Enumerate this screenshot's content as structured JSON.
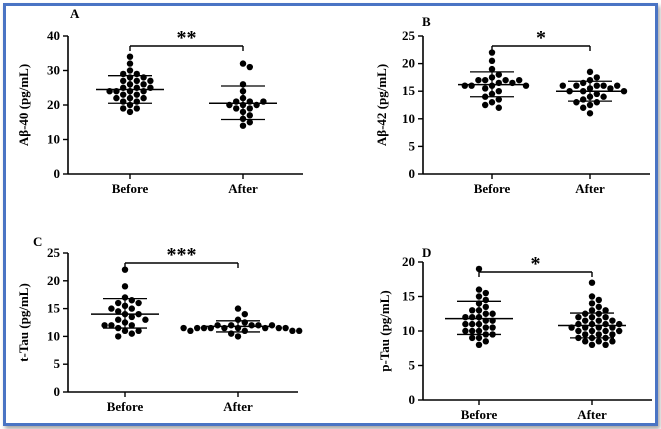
{
  "border_color": "#4a74c4",
  "chart_data": [
    {
      "type": "scatter",
      "panel": "A",
      "categories": [
        "Before",
        "After"
      ],
      "ylabel": "Aβ-40 (pg/mL)",
      "ylim": [
        0,
        40
      ],
      "yticks": [
        0,
        10,
        20,
        30,
        40
      ],
      "significance": "**",
      "summary": [
        {
          "mean": 24.5,
          "sd_low": 20.5,
          "sd_high": 28.5
        },
        {
          "mean": 20.5,
          "sd_low": 15.8,
          "sd_high": 25.5
        }
      ],
      "series": [
        {
          "values": [
            34,
            32,
            30,
            29,
            29,
            28,
            28,
            27,
            27,
            27,
            26,
            26,
            25,
            25,
            25,
            24,
            24,
            24,
            24,
            23,
            23,
            22,
            22,
            22,
            21,
            21,
            20,
            19,
            19,
            18
          ]
        },
        {
          "values": [
            32,
            31,
            26,
            24,
            22,
            21,
            21,
            21,
            20,
            20,
            20,
            19,
            19,
            18,
            17,
            16,
            15,
            14
          ]
        }
      ]
    },
    {
      "type": "scatter",
      "panel": "B",
      "categories": [
        "Before",
        "After"
      ],
      "ylabel": "Aβ-42 (pg/mL)",
      "ylim": [
        0,
        25
      ],
      "yticks": [
        0,
        5,
        10,
        15,
        20,
        25
      ],
      "significance": "*",
      "summary": [
        {
          "mean": 16.2,
          "sd_low": 14.0,
          "sd_high": 18.5
        },
        {
          "mean": 15.0,
          "sd_low": 13.2,
          "sd_high": 16.8
        }
      ],
      "series": [
        {
          "values": [
            22,
            20.5,
            19,
            18,
            17.5,
            17,
            17,
            17,
            17,
            16.5,
            16.5,
            16,
            16,
            16,
            16,
            15.5,
            15,
            14.5,
            14,
            13.5,
            13,
            12.5,
            12
          ]
        },
        {
          "values": [
            18.5,
            17.5,
            17,
            16.5,
            16,
            16,
            16,
            16,
            16,
            15.5,
            15.5,
            15,
            15,
            15,
            14.5,
            14,
            14,
            13.5,
            13,
            13,
            12.5,
            12,
            11
          ]
        }
      ]
    },
    {
      "type": "scatter",
      "panel": "C",
      "categories": [
        "Before",
        "After"
      ],
      "ylabel": "t-Tau (pg/mL)",
      "ylim": [
        0,
        25
      ],
      "yticks": [
        0,
        5,
        10,
        15,
        20,
        25
      ],
      "significance": "***",
      "summary": [
        {
          "mean": 14.0,
          "sd_low": 11.5,
          "sd_high": 16.8
        },
        {
          "mean": 11.8,
          "sd_low": 10.8,
          "sd_high": 12.8
        }
      ],
      "series": [
        {
          "values": [
            22,
            19,
            17,
            16.5,
            16,
            16,
            15.5,
            15,
            15,
            14.5,
            14,
            14,
            13.5,
            13,
            13,
            12.5,
            12,
            12,
            12,
            11.5,
            11,
            11,
            10.5,
            10
          ]
        },
        {
          "values": [
            15,
            14,
            13,
            12.5,
            12,
            12,
            12,
            12,
            12,
            11.5,
            11.5,
            11.5,
            11.5,
            11.5,
            11.5,
            11.5,
            11.5,
            11.5,
            11,
            11,
            11,
            11,
            10.5,
            10
          ]
        }
      ]
    },
    {
      "type": "scatter",
      "panel": "D",
      "categories": [
        "Before",
        "After"
      ],
      "ylabel": "p-Tau (pg/mL)",
      "ylim": [
        0,
        20
      ],
      "yticks": [
        0,
        5,
        10,
        15,
        20
      ],
      "significance": "*",
      "summary": [
        {
          "mean": 11.8,
          "sd_low": 9.5,
          "sd_high": 14.3
        },
        {
          "mean": 10.8,
          "sd_low": 9.0,
          "sd_high": 12.6
        }
      ],
      "series": [
        {
          "values": [
            19,
            16,
            15.5,
            15,
            14.5,
            14,
            13.5,
            13,
            13,
            12.5,
            12.5,
            12,
            12,
            12,
            11.5,
            11.5,
            11,
            11,
            11,
            10.5,
            10.5,
            10,
            10,
            10,
            9.5,
            9.5,
            9,
            9,
            8.5,
            8
          ]
        },
        {
          "values": [
            17,
            15,
            14.5,
            14,
            13.5,
            13,
            13,
            12.5,
            12.5,
            12,
            12,
            12,
            11.5,
            11.5,
            11.5,
            11,
            11,
            11,
            11,
            10.5,
            10.5,
            10.5,
            10.5,
            10,
            10,
            10,
            10,
            9.5,
            9.5,
            9.5,
            9,
            9,
            9,
            8.5,
            8.5,
            8.5,
            8,
            8
          ]
        }
      ]
    }
  ]
}
